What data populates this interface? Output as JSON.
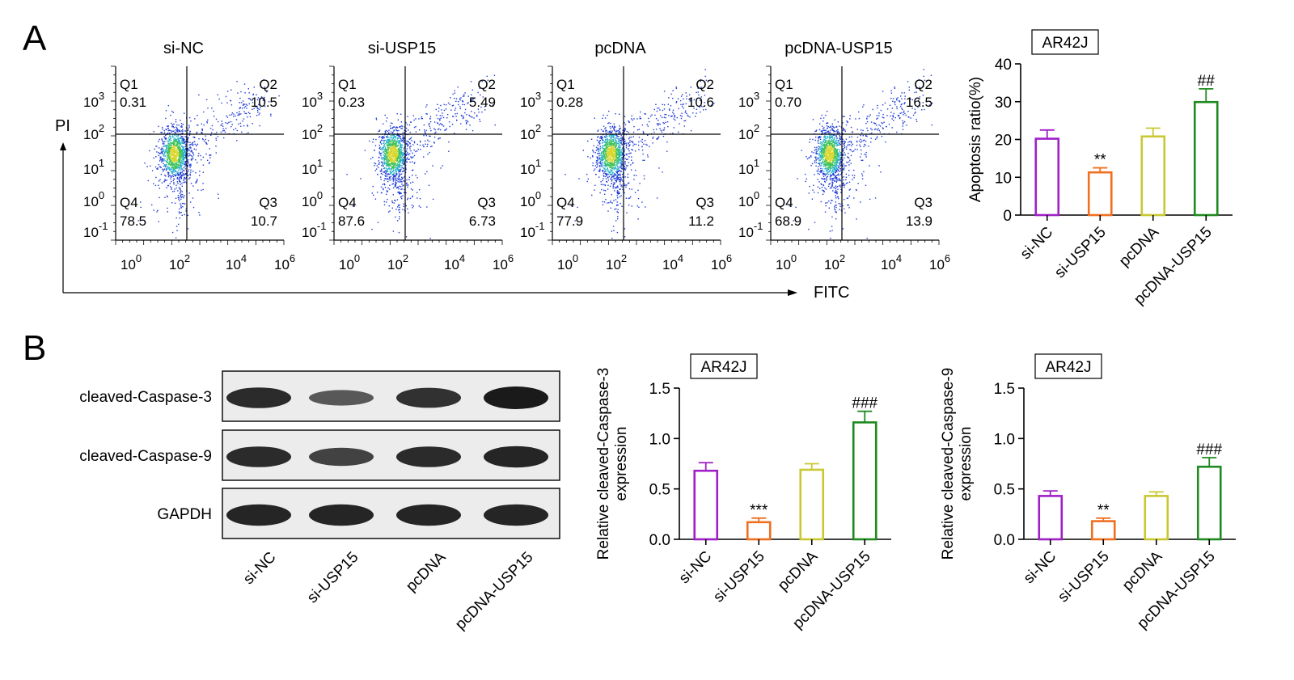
{
  "panels": {
    "a_label": "A",
    "b_label": "B"
  },
  "flow": {
    "x_axis_label": "FITC",
    "y_axis_label": "PI",
    "x_ticks": [
      "10",
      "10",
      "10",
      "10"
    ],
    "x_tick_exponents": [
      "0",
      "2",
      "4",
      "6"
    ],
    "y_ticks": [
      "10",
      "10",
      "10",
      "10",
      "10"
    ],
    "y_tick_exponents": [
      "3",
      "2",
      "1",
      "0",
      "-1"
    ],
    "plots": [
      {
        "title": "si-NC",
        "q1": "0.31",
        "q2": "10.5",
        "q3": "10.7",
        "q4": "78.5"
      },
      {
        "title": "si-USP15",
        "q1": "0.23",
        "q2": "5.49",
        "q3": "6.73",
        "q4": "87.6"
      },
      {
        "title": "pcDNA",
        "q1": "0.28",
        "q2": "10.6",
        "q3": "11.2",
        "q4": "77.9"
      },
      {
        "title": "pcDNA-USP15",
        "q1": "0.70",
        "q2": "16.5",
        "q3": "13.9",
        "q4": "68.9"
      }
    ],
    "quadrant_labels": [
      "Q1",
      "Q2",
      "Q3",
      "Q4"
    ]
  },
  "blot": {
    "rows": [
      "cleaved-Caspase-3",
      "cleaved-Caspase-9",
      "GAPDH"
    ],
    "lanes": [
      "si-NC",
      "si-USP15",
      "pcDNA",
      "pcDNA-USP15"
    ]
  },
  "colors": {
    "si-NC": "#a01fc7",
    "si-USP15": "#f07020",
    "pcDNA": "#c9c832",
    "pcDNA-USP15": "#1f8a1f"
  },
  "chart_data": [
    {
      "id": "apoptosis",
      "type": "bar",
      "legend_box": "AR42J",
      "ylabel": "Apoptosis ratio(%)",
      "ylim": [
        0,
        40
      ],
      "yticks": [
        "0",
        "10",
        "20",
        "30",
        "40"
      ],
      "categories": [
        "si-NC",
        "si-USP15",
        "pcDNA",
        "pcDNA-USP15"
      ],
      "values": [
        20.2,
        11.3,
        20.8,
        29.9
      ],
      "errors": [
        2.3,
        1.2,
        2.2,
        3.5
      ],
      "annotations": [
        "",
        "**",
        "",
        "##"
      ]
    },
    {
      "id": "casp3",
      "type": "bar",
      "legend_box": "AR42J",
      "ylabel": [
        "Relative cleaved-Caspase-3",
        "expression"
      ],
      "ylim": [
        0,
        1.5
      ],
      "yticks": [
        "0.0",
        "0.5",
        "1.0",
        "1.5"
      ],
      "categories": [
        "si-NC",
        "si-USP15",
        "pcDNA",
        "pcDNA-USP15"
      ],
      "values": [
        0.68,
        0.17,
        0.69,
        1.16
      ],
      "errors": [
        0.08,
        0.04,
        0.06,
        0.11
      ],
      "annotations": [
        "",
        "***",
        "",
        "###"
      ]
    },
    {
      "id": "casp9",
      "type": "bar",
      "legend_box": "AR42J",
      "ylabel": [
        "Relative cleaved-Caspase-9",
        "expression"
      ],
      "ylim": [
        0,
        1.5
      ],
      "yticks": [
        "0.0",
        "0.5",
        "1.0",
        "1.5"
      ],
      "categories": [
        "si-NC",
        "si-USP15",
        "pcDNA",
        "pcDNA-USP15"
      ],
      "values": [
        0.43,
        0.18,
        0.43,
        0.72
      ],
      "errors": [
        0.05,
        0.03,
        0.04,
        0.09
      ],
      "annotations": [
        "",
        "**",
        "",
        "###"
      ]
    }
  ]
}
